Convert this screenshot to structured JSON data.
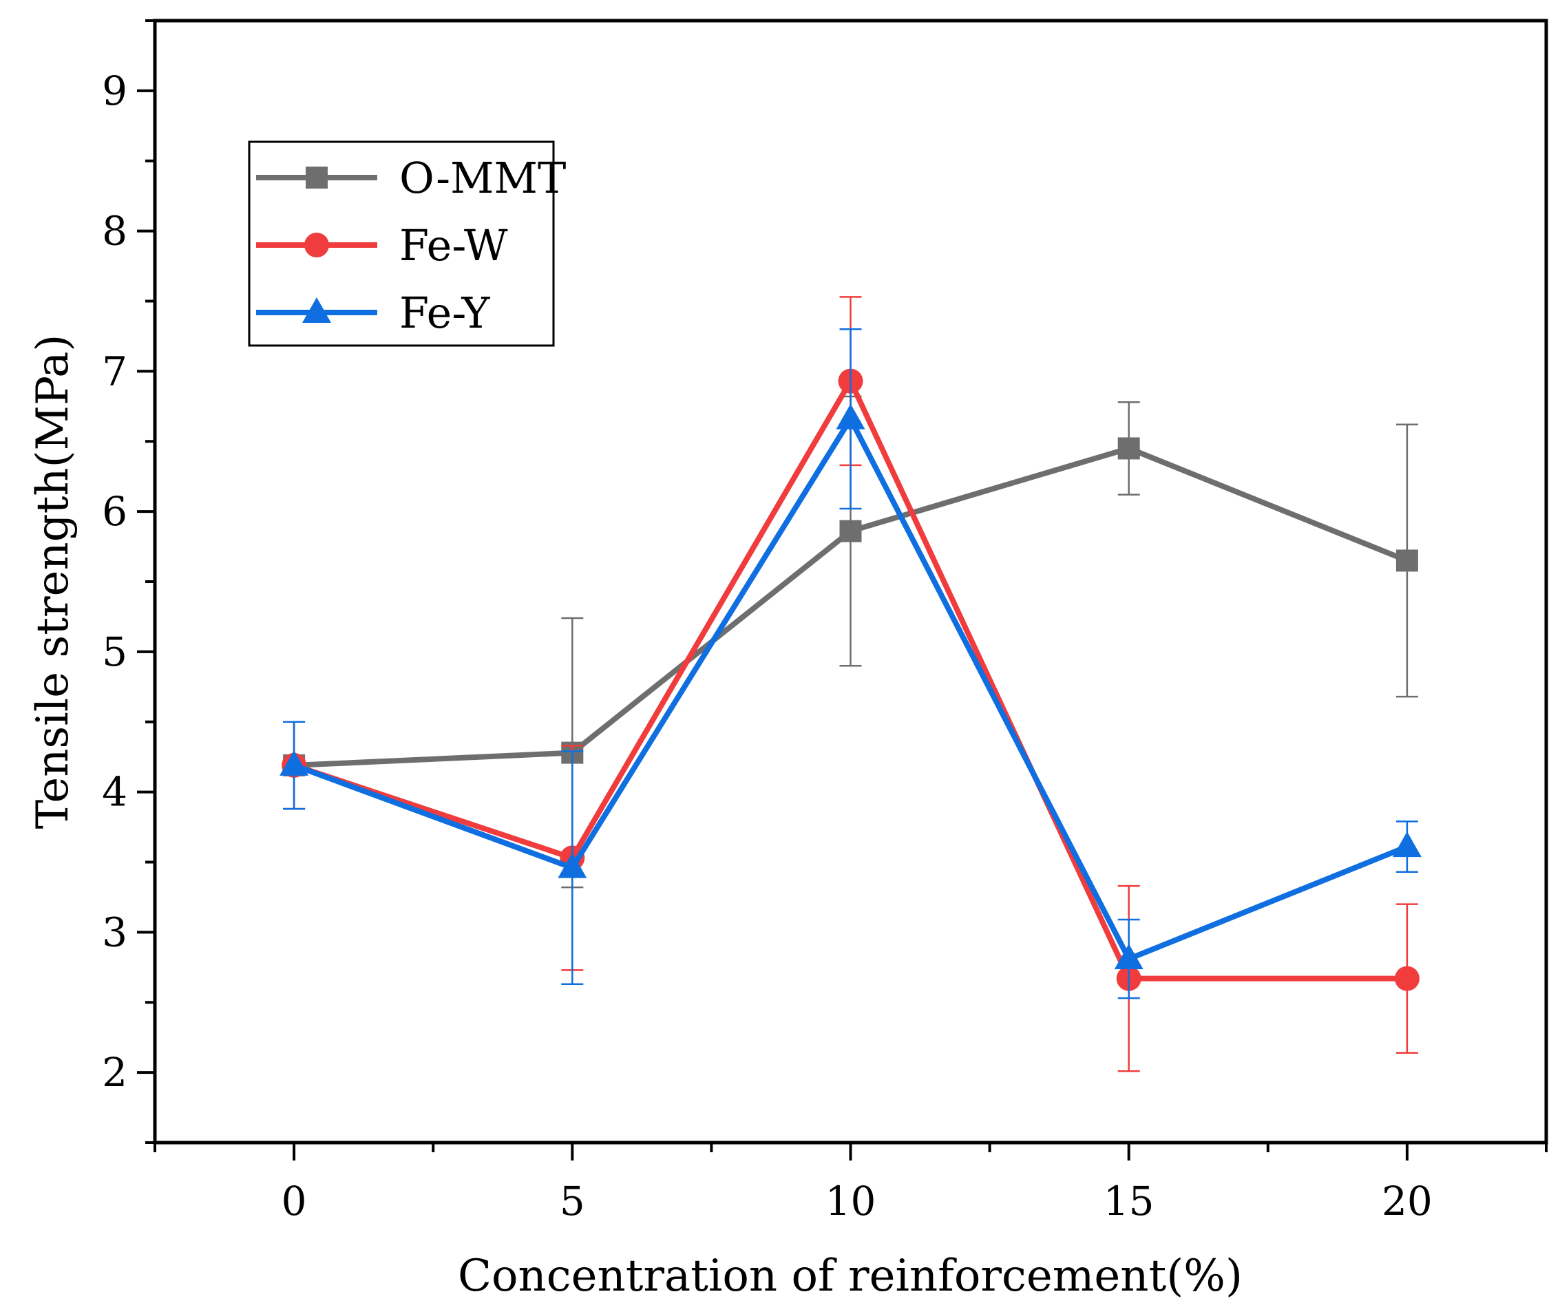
{
  "chart_data": {
    "type": "line",
    "title": "",
    "xlabel": "Concentration of reinforcement(%)",
    "ylabel": "Tensile strength(MPa)",
    "xlim": [
      -2.5,
      22.5
    ],
    "ylim": [
      1.5,
      9.5
    ],
    "x_ticks": [
      0,
      5,
      10,
      15,
      20
    ],
    "y_ticks": [
      2,
      3,
      4,
      5,
      6,
      7,
      8,
      9
    ],
    "x_tick_labels": [
      "0",
      "5",
      "10",
      "15",
      "20"
    ],
    "y_tick_labels": [
      "2",
      "3",
      "4",
      "5",
      "6",
      "7",
      "8",
      "9"
    ],
    "legend_position": "top-left",
    "grid": false,
    "x": [
      0,
      5,
      10,
      15,
      20
    ],
    "series": [
      {
        "name": "O-MMT",
        "color": "#6e6e6e",
        "marker": "square",
        "values": [
          4.19,
          4.28,
          5.86,
          6.45,
          5.65
        ],
        "error": [
          0.31,
          0.96,
          0.96,
          0.33,
          0.97
        ]
      },
      {
        "name": "Fe-W",
        "color": "#f03c3c",
        "marker": "circle",
        "values": [
          4.19,
          3.53,
          6.93,
          2.67,
          2.67
        ],
        "error": [
          0.31,
          0.8,
          0.6,
          0.66,
          0.53
        ]
      },
      {
        "name": "Fe-Y",
        "color": "#0f6fe0",
        "marker": "triangle",
        "values": [
          4.19,
          3.46,
          6.66,
          2.81,
          3.61
        ],
        "error": [
          0.31,
          0.83,
          0.64,
          0.28,
          0.18
        ]
      }
    ]
  }
}
